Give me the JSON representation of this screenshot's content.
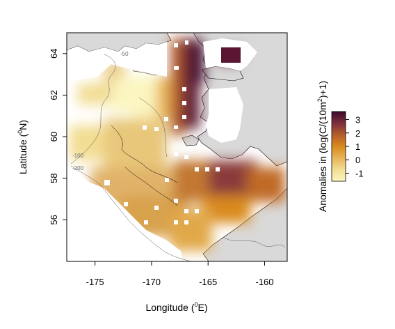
{
  "map": {
    "xlabel_prefix": "Longitude (",
    "xlabel_sup": "0",
    "xlabel_suffix": "E)",
    "ylabel_prefix": "Latitude (",
    "ylabel_sup": "0",
    "ylabel_suffix": "N)",
    "x_ticks": [
      "-175",
      "-170",
      "-165",
      "-160"
    ],
    "y_ticks": [
      "56",
      "58",
      "60",
      "62",
      "64"
    ],
    "x_tick_values": [
      -175,
      -170,
      -165,
      -160
    ],
    "y_tick_values": [
      56,
      58,
      60,
      62,
      64
    ],
    "xlim": [
      -177.5,
      -158
    ],
    "ylim": [
      54,
      65
    ],
    "contour_labels": [
      "-50",
      "-100",
      "-200"
    ],
    "land_color": "#d9d9d9"
  },
  "legend": {
    "title_prefix": "Anomalies in (log(C/(10m",
    "title_sup": "2",
    "title_suffix": ")+1)",
    "ticks": [
      "3",
      "2",
      "1",
      "0",
      "-1"
    ],
    "tick_values": [
      3,
      2,
      1,
      0,
      -1
    ],
    "range": [
      -1.6,
      3.6
    ],
    "colors": [
      "#fbf5c0",
      "#f2dd92",
      "#e8b55a",
      "#d98a1f",
      "#b35c2c",
      "#7d2f3e",
      "#3e0a2c"
    ]
  }
}
